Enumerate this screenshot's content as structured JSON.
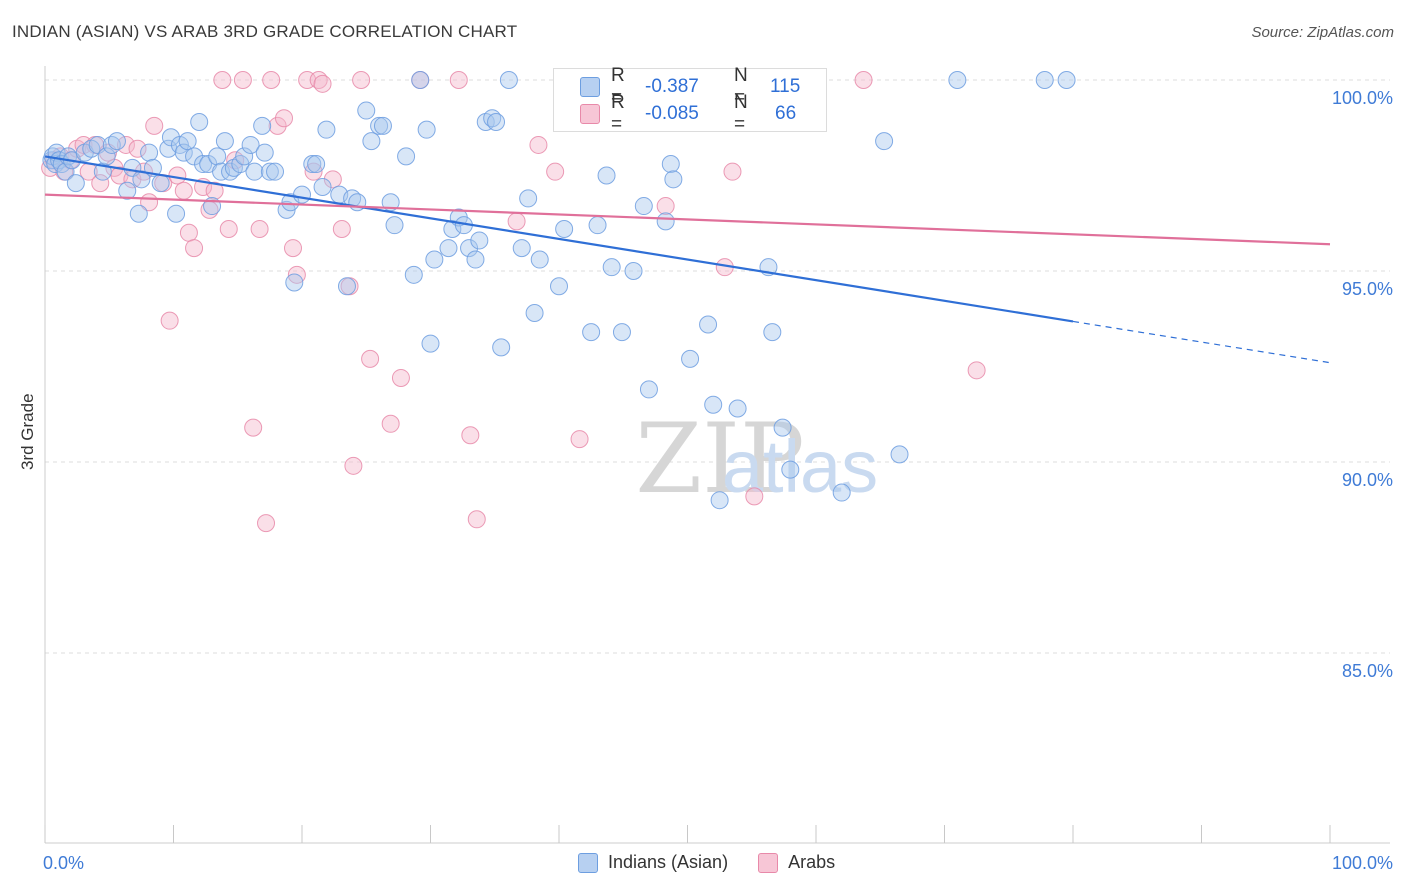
{
  "title": "INDIAN (ASIAN) VS ARAB 3RD GRADE CORRELATION CHART",
  "source": "Source: ZipAtlas.com",
  "colors": {
    "blue": "#2f6fd6",
    "pink": "#e0709a",
    "blue_fill": "#a9c7ee",
    "pink_fill": "#f4b8cd"
  },
  "stats": {
    "rows": [
      {
        "r_label": "R =",
        "r_value": "-0.387",
        "n_label": "N =",
        "n_value": "115"
      },
      {
        "r_label": "R =",
        "r_value": "-0.085",
        "n_label": "N =",
        "n_value": "66"
      }
    ]
  },
  "legend": {
    "items": [
      {
        "label": "Indians (Asian)"
      },
      {
        "label": "Arabs"
      }
    ]
  },
  "chart_data": {
    "type": "scatter",
    "xlabel": "",
    "ylabel": "3rd Grade",
    "xlim": [
      0,
      100
    ],
    "ylim": [
      80.5,
      100.8
    ],
    "x_tick_labels": [
      "0.0%",
      "100.0%"
    ],
    "y_tick_labels": [
      "100.0%",
      "95.0%",
      "90.0%",
      "85.0%"
    ],
    "y_ticks": [
      100,
      95,
      90,
      85
    ],
    "watermark": "ZIPatlas",
    "series": [
      {
        "name": "Indians (Asian)",
        "trend": {
          "x0": 0,
          "y0": 98.0,
          "x1": 100,
          "y1": 92.6,
          "solid_until": 80
        },
        "points": [
          [
            0.5,
            97.9
          ],
          [
            0.6,
            98.0
          ],
          [
            0.8,
            97.8
          ],
          [
            0.9,
            98.1
          ],
          [
            1.1,
            97.9
          ],
          [
            1.3,
            97.8
          ],
          [
            1.6,
            97.6
          ],
          [
            1.8,
            98.0
          ],
          [
            2.1,
            97.9
          ],
          [
            2.4,
            97.3
          ],
          [
            3.1,
            98.1
          ],
          [
            3.6,
            98.2
          ],
          [
            4.1,
            98.3
          ],
          [
            4.5,
            97.6
          ],
          [
            4.8,
            98.0
          ],
          [
            5.2,
            98.3
          ],
          [
            5.6,
            98.4
          ],
          [
            6.4,
            97.1
          ],
          [
            6.8,
            97.7
          ],
          [
            7.3,
            96.5
          ],
          [
            7.5,
            97.4
          ],
          [
            8.1,
            98.1
          ],
          [
            8.4,
            97.7
          ],
          [
            9.0,
            97.3
          ],
          [
            9.6,
            98.2
          ],
          [
            9.8,
            98.5
          ],
          [
            10.2,
            96.5
          ],
          [
            10.5,
            98.3
          ],
          [
            10.8,
            98.1
          ],
          [
            11.1,
            98.4
          ],
          [
            11.6,
            98.0
          ],
          [
            12.0,
            98.9
          ],
          [
            12.3,
            97.8
          ],
          [
            12.7,
            97.8
          ],
          [
            13.0,
            96.7
          ],
          [
            13.4,
            98.0
          ],
          [
            13.7,
            97.6
          ],
          [
            14.0,
            98.4
          ],
          [
            14.4,
            97.6
          ],
          [
            14.7,
            97.7
          ],
          [
            15.2,
            97.8
          ],
          [
            15.5,
            98.0
          ],
          [
            16.0,
            98.3
          ],
          [
            16.3,
            97.6
          ],
          [
            16.9,
            98.8
          ],
          [
            17.1,
            98.1
          ],
          [
            17.5,
            97.6
          ],
          [
            17.9,
            97.6
          ],
          [
            18.8,
            96.6
          ],
          [
            19.1,
            96.8
          ],
          [
            19.4,
            94.7
          ],
          [
            20.0,
            97.0
          ],
          [
            20.8,
            97.8
          ],
          [
            21.1,
            97.8
          ],
          [
            21.6,
            97.2
          ],
          [
            21.9,
            98.7
          ],
          [
            22.9,
            97.0
          ],
          [
            23.5,
            94.6
          ],
          [
            23.9,
            96.9
          ],
          [
            24.3,
            96.8
          ],
          [
            25.0,
            99.2
          ],
          [
            25.4,
            98.4
          ],
          [
            26.0,
            98.8
          ],
          [
            26.3,
            98.8
          ],
          [
            26.9,
            96.8
          ],
          [
            27.2,
            96.2
          ],
          [
            28.1,
            98.0
          ],
          [
            28.7,
            94.9
          ],
          [
            29.2,
            100.0
          ],
          [
            29.7,
            98.7
          ],
          [
            30.0,
            93.1
          ],
          [
            30.3,
            95.3
          ],
          [
            31.4,
            95.6
          ],
          [
            31.7,
            96.1
          ],
          [
            32.2,
            96.4
          ],
          [
            32.6,
            96.2
          ],
          [
            33.0,
            95.6
          ],
          [
            33.5,
            95.3
          ],
          [
            33.8,
            95.8
          ],
          [
            34.3,
            98.9
          ],
          [
            34.8,
            99.0
          ],
          [
            35.1,
            98.9
          ],
          [
            35.5,
            93.0
          ],
          [
            36.1,
            100.0
          ],
          [
            37.1,
            95.6
          ],
          [
            37.6,
            96.9
          ],
          [
            38.1,
            93.9
          ],
          [
            38.5,
            95.3
          ],
          [
            40.0,
            94.6
          ],
          [
            40.4,
            96.1
          ],
          [
            42.5,
            93.4
          ],
          [
            43.0,
            96.2
          ],
          [
            43.7,
            97.5
          ],
          [
            44.1,
            95.1
          ],
          [
            44.9,
            93.4
          ],
          [
            45.8,
            95.0
          ],
          [
            46.6,
            96.7
          ],
          [
            47.0,
            91.9
          ],
          [
            48.3,
            96.3
          ],
          [
            48.7,
            97.8
          ],
          [
            48.9,
            97.4
          ],
          [
            50.2,
            92.7
          ],
          [
            51.6,
            93.6
          ],
          [
            52.0,
            91.5
          ],
          [
            52.5,
            89.0
          ],
          [
            53.9,
            91.4
          ],
          [
            56.3,
            95.1
          ],
          [
            56.6,
            93.4
          ],
          [
            57.4,
            90.9
          ],
          [
            58.0,
            89.8
          ],
          [
            62.0,
            89.2
          ],
          [
            65.3,
            98.4
          ],
          [
            66.5,
            90.2
          ],
          [
            71.0,
            100.0
          ],
          [
            77.8,
            100.0
          ],
          [
            79.5,
            100.0
          ]
        ]
      },
      {
        "name": "Arabs",
        "trend": {
          "x0": 0,
          "y0": 97.0,
          "x1": 100,
          "y1": 95.7,
          "solid_until": 100
        },
        "points": [
          [
            0.4,
            97.7
          ],
          [
            0.7,
            97.9
          ],
          [
            1.2,
            98.0
          ],
          [
            1.5,
            97.6
          ],
          [
            2.0,
            97.9
          ],
          [
            2.5,
            98.2
          ],
          [
            3.0,
            98.3
          ],
          [
            3.4,
            97.6
          ],
          [
            3.9,
            98.3
          ],
          [
            4.3,
            97.3
          ],
          [
            4.9,
            98.1
          ],
          [
            5.4,
            97.7
          ],
          [
            5.8,
            97.5
          ],
          [
            6.3,
            98.3
          ],
          [
            6.8,
            97.4
          ],
          [
            7.2,
            98.2
          ],
          [
            7.7,
            97.6
          ],
          [
            8.1,
            96.8
          ],
          [
            8.5,
            98.8
          ],
          [
            9.2,
            97.3
          ],
          [
            9.7,
            93.7
          ],
          [
            10.3,
            97.5
          ],
          [
            10.8,
            97.1
          ],
          [
            11.2,
            96.0
          ],
          [
            11.6,
            95.6
          ],
          [
            12.3,
            97.2
          ],
          [
            12.8,
            96.6
          ],
          [
            13.2,
            97.1
          ],
          [
            13.8,
            100.0
          ],
          [
            14.3,
            96.1
          ],
          [
            14.8,
            97.9
          ],
          [
            15.4,
            100.0
          ],
          [
            16.2,
            90.9
          ],
          [
            16.7,
            96.1
          ],
          [
            17.2,
            88.4
          ],
          [
            17.6,
            100.0
          ],
          [
            18.1,
            98.8
          ],
          [
            18.6,
            99.0
          ],
          [
            19.3,
            95.6
          ],
          [
            19.6,
            94.9
          ],
          [
            20.4,
            100.0
          ],
          [
            20.9,
            97.6
          ],
          [
            21.3,
            100.0
          ],
          [
            21.6,
            99.9
          ],
          [
            22.4,
            97.4
          ],
          [
            23.1,
            96.1
          ],
          [
            23.7,
            94.6
          ],
          [
            24.0,
            89.9
          ],
          [
            24.6,
            100.0
          ],
          [
            25.3,
            92.7
          ],
          [
            26.9,
            91.0
          ],
          [
            27.7,
            92.2
          ],
          [
            29.2,
            100.0
          ],
          [
            32.2,
            100.0
          ],
          [
            33.1,
            90.7
          ],
          [
            33.6,
            88.5
          ],
          [
            36.7,
            96.3
          ],
          [
            38.4,
            98.3
          ],
          [
            39.7,
            97.6
          ],
          [
            41.6,
            90.6
          ],
          [
            48.3,
            96.7
          ],
          [
            52.9,
            95.1
          ],
          [
            53.5,
            97.6
          ],
          [
            55.2,
            89.1
          ],
          [
            63.7,
            100.0
          ],
          [
            72.5,
            92.4
          ]
        ]
      }
    ]
  }
}
